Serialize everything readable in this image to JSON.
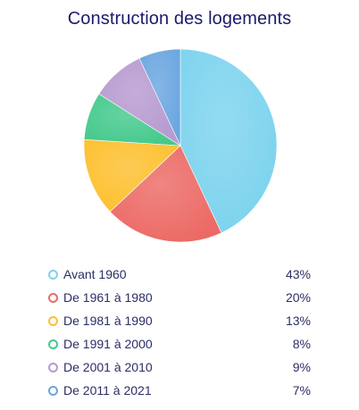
{
  "chart_data": {
    "type": "pie",
    "title": "Construction des logements",
    "categories": [
      "Avant 1960",
      "De 1961 à 1980",
      "De 1981 à 1990",
      "De 1991 à 2000",
      "De 2001 à 2010",
      "De 2011 à 2021"
    ],
    "values": [
      43,
      20,
      13,
      8,
      9,
      7
    ],
    "value_labels": [
      "43%",
      "20%",
      "13%",
      "8%",
      "9%",
      "7%"
    ],
    "colors": [
      "#7dd3ee",
      "#ec6a65",
      "#fdc02e",
      "#45c98c",
      "#b79ad0",
      "#6aa6e0"
    ],
    "legend_position": "bottom"
  }
}
